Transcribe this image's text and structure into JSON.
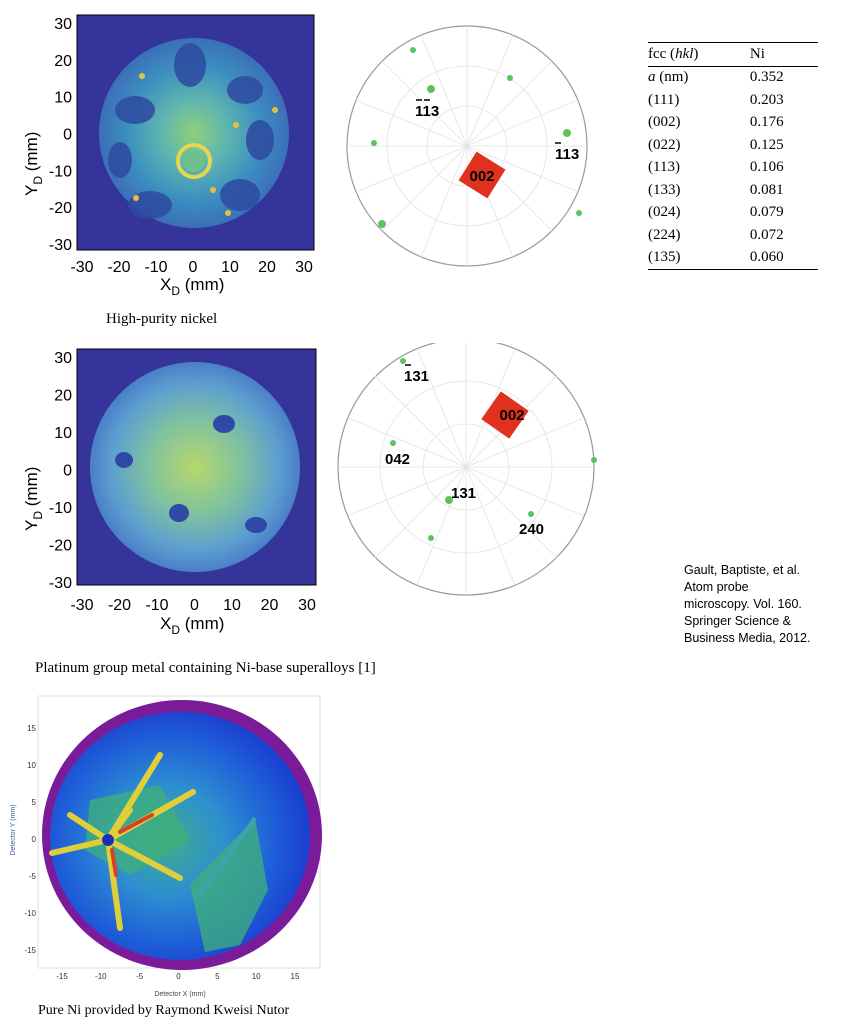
{
  "panel1": {
    "caption": "High-purity nickel",
    "xlabel": "X",
    "xlabel_sub": "D",
    "xlabel_unit": "(mm)",
    "ylabel": "Y",
    "ylabel_sub": "D",
    "ylabel_unit": "(mm)",
    "xticks": [
      "-30",
      "-20",
      "-10",
      "0",
      "10",
      "20",
      "30"
    ],
    "yticks": [
      "30",
      "20",
      "10",
      "0",
      "-10",
      "-20",
      "-30"
    ]
  },
  "stereo1": {
    "pole_center": "002",
    "poles": [
      {
        "label": "113",
        "bar_digits": 2
      },
      {
        "label": "113",
        "bar_digits": 1
      }
    ]
  },
  "panel2": {
    "caption": "Platinum group metal containing Ni-base superalloys [1]",
    "xlabel": "X",
    "xlabel_sub": "D",
    "xlabel_unit": "(mm)",
    "ylabel": "Y",
    "ylabel_sub": "D",
    "ylabel_unit": "(mm)",
    "xticks": [
      "-30",
      "-20",
      "-10",
      "0",
      "10",
      "20",
      "30"
    ],
    "yticks": [
      "30",
      "20",
      "10",
      "0",
      "-10",
      "-20",
      "-30"
    ]
  },
  "stereo2": {
    "pole_center": "002",
    "poles": [
      {
        "label": "131",
        "bar_digits": 1
      },
      {
        "label": "042"
      },
      {
        "label": "131"
      },
      {
        "label": "240"
      }
    ]
  },
  "table": {
    "header": [
      "fcc (",
      "hkl",
      ")",
      "Ni"
    ],
    "rows": [
      {
        "label_italic": "a",
        "label": " (nm)",
        "value": "0.352"
      },
      {
        "label": "(111)",
        "value": "0.203"
      },
      {
        "label": "(002)",
        "value": "0.176"
      },
      {
        "label": "(022)",
        "value": "0.125"
      },
      {
        "label": "(113)",
        "value": "0.106"
      },
      {
        "label": "(133)",
        "value": "0.081"
      },
      {
        "label": "(024)",
        "value": "0.079"
      },
      {
        "label": "(224)",
        "value": "0.072"
      },
      {
        "label": "(135)",
        "value": "0.060"
      }
    ]
  },
  "reference": {
    "lines": [
      "Gault, Baptiste, et al.",
      "Atom probe",
      "microscopy. Vol. 160.",
      "Springer Science &",
      "Business Media, 2012."
    ]
  },
  "panel3": {
    "caption": "Pure Ni provided by Raymond Kweisi Nutor",
    "xlabel": "Detector X (mm)",
    "ylabel": "Detector Y (mm)",
    "xticks": [
      "-15",
      "-10",
      "-5",
      "0",
      "5",
      "10",
      "15"
    ],
    "yticks": [
      "15",
      "10",
      "5",
      "0",
      "-5",
      "-10",
      "-15"
    ]
  }
}
